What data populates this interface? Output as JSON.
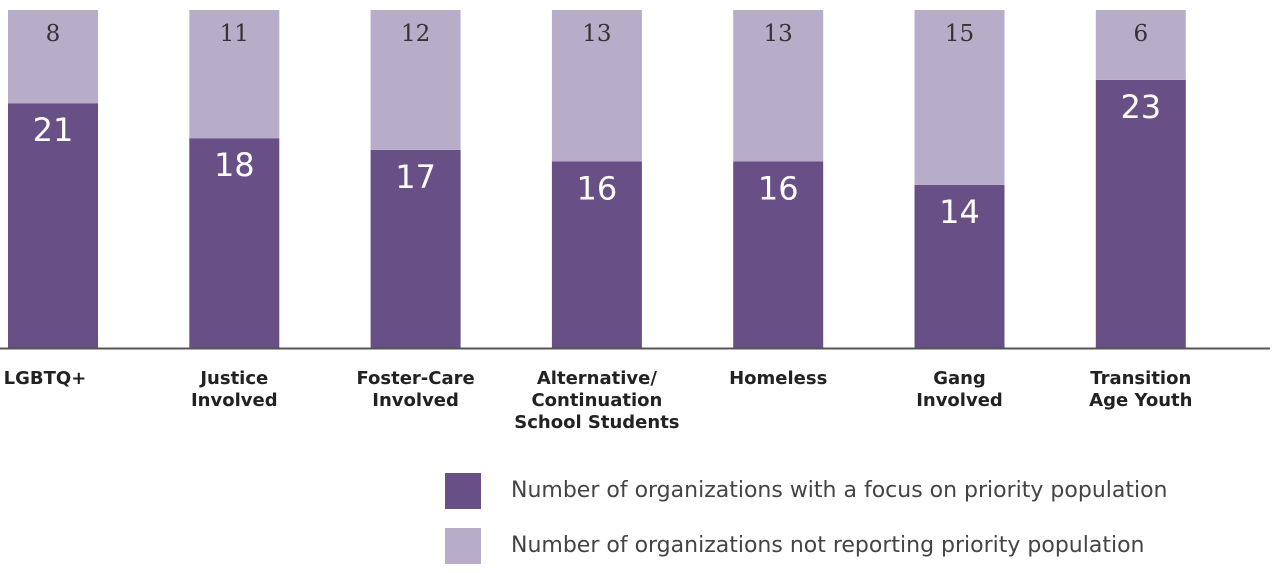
{
  "chart_data": {
    "type": "bar",
    "stacked": true,
    "categories": [
      [
        "LGBTQ+"
      ],
      [
        "Justice",
        "Involved"
      ],
      [
        "Foster-Care",
        "Involved"
      ],
      [
        "Alternative/",
        "Continuation",
        "School Students"
      ],
      [
        "Homeless"
      ],
      [
        "Gang",
        "Involved"
      ],
      [
        "Transition",
        "Age Youth"
      ]
    ],
    "series": [
      {
        "name": "Number of organizations with a focus on priority population",
        "values": [
          21,
          18,
          17,
          16,
          16,
          14,
          23
        ],
        "color": "#684f85"
      },
      {
        "name": "Number of organizations not reporting priority population",
        "values": [
          8,
          11,
          12,
          13,
          13,
          15,
          6
        ],
        "color": "#b8adc9"
      }
    ],
    "ylim": [
      0,
      29
    ],
    "grid": false,
    "legend_position": "bottom-right"
  },
  "colors": {
    "baseline": "#555555",
    "label_dark": "#ffffff",
    "label_light": "#333333",
    "category_text": "#222222"
  }
}
